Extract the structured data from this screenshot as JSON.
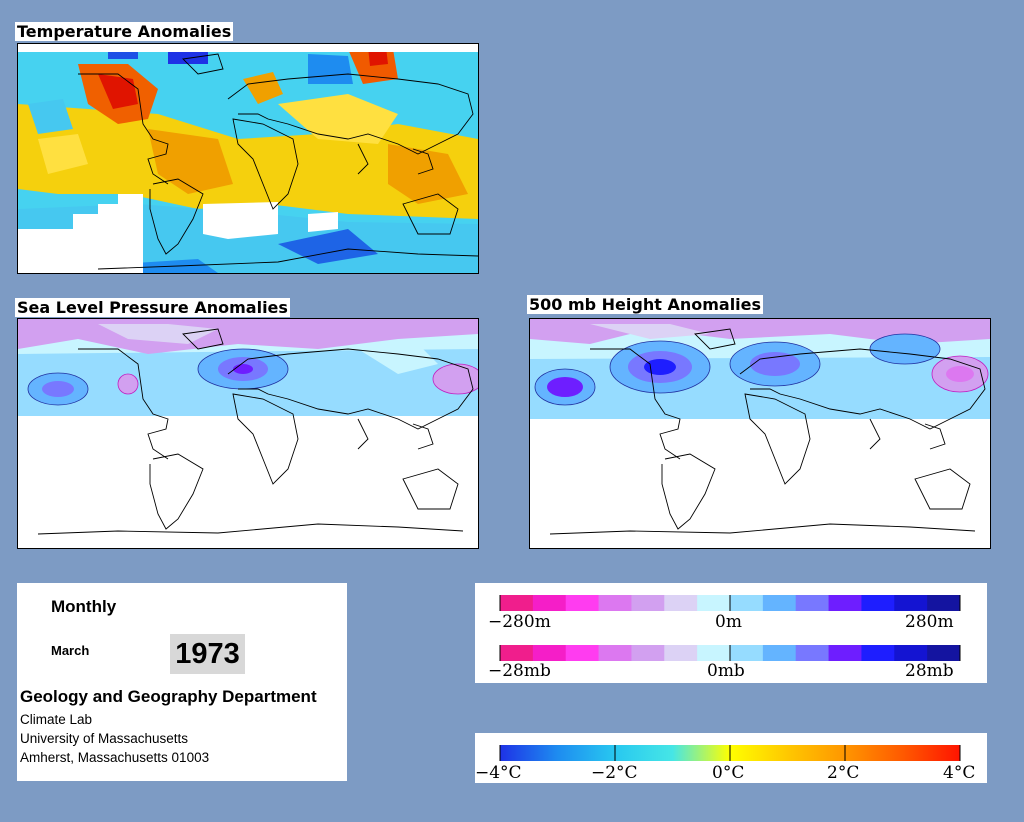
{
  "maps": {
    "temperature": {
      "title": "Temperature Anomalies"
    },
    "slp": {
      "title": "Sea Level Pressure Anomalies"
    },
    "height500": {
      "title": "500 mb Height Anomalies"
    }
  },
  "info": {
    "frequency": "Monthly",
    "month": "March",
    "year": "1973",
    "department": "Geology and Geography Department",
    "address_lines": [
      "Climate Lab",
      "University of Massachusetts",
      "Amherst, Massachusetts 01003"
    ]
  },
  "legends": {
    "height": {
      "labels": [
        "−280m",
        "0m",
        "280m"
      ],
      "colors": [
        "#f01e8c",
        "#f51ec8",
        "#ff3cf0",
        "#dc78f0",
        "#d2a0f0",
        "#dcd2f5",
        "#c8f5ff",
        "#96dcff",
        "#64b4ff",
        "#7878ff",
        "#6e1eff",
        "#1e1eff",
        "#1414d2",
        "#1414a0"
      ]
    },
    "pressure": {
      "labels": [
        "−28mb",
        "0mb",
        "28mb"
      ],
      "colors": [
        "#f01e8c",
        "#f51ec8",
        "#ff3cf0",
        "#dc78f0",
        "#d2a0f0",
        "#dcd2f5",
        "#c8f5ff",
        "#96dcff",
        "#64b4ff",
        "#7878ff",
        "#6e1eff",
        "#1e1eff",
        "#1414d2",
        "#1414a0"
      ]
    },
    "temperature": {
      "labels": [
        "−4°C",
        "−2°C",
        "0°C",
        "2°C",
        "4°C"
      ],
      "gradient": [
        "#1e32e6",
        "#1e8cf0",
        "#28c8f0",
        "#46e6e6",
        "#ffff00",
        "#ffc800",
        "#ff9600",
        "#ff5a00",
        "#ff1400"
      ]
    }
  }
}
